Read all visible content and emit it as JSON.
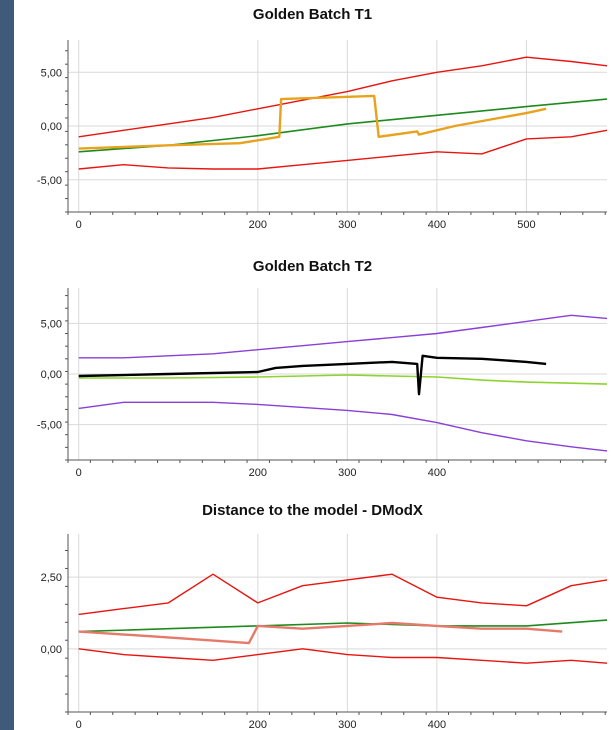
{
  "colors": {
    "upper_limit": "#e8140f",
    "lower_limit": "#e8140f",
    "mean_t1": "#1e8a1e",
    "batch_t1": "#e8a21e",
    "limit_t2": "#8a3fd6",
    "mean_t2": "#8ed32f",
    "batch_t2": "#000000",
    "dmodx_limit": "#e8140f",
    "dmodx_mean": "#1e8a1e",
    "dmodx_batch": "#e57a6a",
    "gridline": "#d9d9d9",
    "axis": "#555555"
  },
  "chart_data": [
    {
      "type": "line",
      "title": "Golden Batch T1",
      "xlabel": "",
      "ylabel": "",
      "xlim": [
        -12,
        590
      ],
      "ylim": [
        -8,
        8
      ],
      "grid": true,
      "x_ticks": [
        "0",
        "200",
        "300",
        "400",
        "500"
      ],
      "x_tick_values": [
        0,
        200,
        300,
        400,
        500
      ],
      "y_ticks": [
        "5,00",
        "0,00",
        "-5,00"
      ],
      "y_tick_values": [
        5,
        0,
        -5
      ],
      "series": [
        {
          "role": "upper_limit",
          "x": [
            0,
            50,
            100,
            150,
            200,
            250,
            300,
            350,
            400,
            450,
            500,
            550,
            590
          ],
          "y": [
            -1.0,
            -0.4,
            0.2,
            0.8,
            1.6,
            2.4,
            3.2,
            4.2,
            5.0,
            5.6,
            6.4,
            6.0,
            5.6
          ]
        },
        {
          "role": "mean",
          "x": [
            0,
            100,
            200,
            300,
            400,
            500,
            590
          ],
          "y": [
            -2.4,
            -1.8,
            -0.9,
            0.2,
            1.0,
            1.8,
            2.5
          ]
        },
        {
          "role": "lower_limit",
          "x": [
            0,
            50,
            100,
            150,
            200,
            250,
            300,
            350,
            400,
            450,
            500,
            550,
            590
          ],
          "y": [
            -4.0,
            -3.6,
            -3.9,
            -4.0,
            -4.0,
            -3.6,
            -3.2,
            -2.8,
            -2.4,
            -2.6,
            -1.2,
            -1.0,
            -0.4
          ]
        },
        {
          "role": "batch",
          "x": [
            0,
            100,
            180,
            224,
            226,
            330,
            335,
            378,
            380,
            420,
            460,
            500,
            522
          ],
          "y": [
            -2.1,
            -1.8,
            -1.6,
            -1.0,
            2.5,
            2.8,
            -1.0,
            -0.5,
            -0.8,
            0.0,
            0.6,
            1.2,
            1.6
          ]
        }
      ]
    },
    {
      "type": "line",
      "title": "Golden Batch T2",
      "xlabel": "",
      "ylabel": "",
      "xlim": [
        -12,
        590
      ],
      "ylim": [
        -8.5,
        8.5
      ],
      "grid": true,
      "x_ticks": [
        "0",
        "200",
        "300",
        "400"
      ],
      "x_tick_values": [
        0,
        200,
        300,
        400
      ],
      "y_ticks": [
        "5,00",
        "0,00",
        "-5,00"
      ],
      "y_tick_values": [
        5,
        0,
        -5
      ],
      "series": [
        {
          "role": "upper_limit",
          "x": [
            0,
            50,
            100,
            150,
            200,
            250,
            300,
            350,
            400,
            450,
            500,
            550,
            590
          ],
          "y": [
            1.6,
            1.6,
            1.8,
            2.0,
            2.4,
            2.8,
            3.2,
            3.6,
            4.0,
            4.6,
            5.2,
            5.8,
            5.5
          ]
        },
        {
          "role": "mean",
          "x": [
            0,
            100,
            200,
            250,
            300,
            350,
            400,
            450,
            500,
            590
          ],
          "y": [
            -0.4,
            -0.4,
            -0.3,
            -0.2,
            -0.1,
            -0.2,
            -0.3,
            -0.6,
            -0.8,
            -1.0
          ]
        },
        {
          "role": "lower_limit",
          "x": [
            0,
            50,
            100,
            150,
            200,
            250,
            300,
            350,
            400,
            450,
            500,
            550,
            590
          ],
          "y": [
            -3.4,
            -2.8,
            -2.8,
            -2.8,
            -3.0,
            -3.3,
            -3.6,
            -4.0,
            -4.8,
            -5.8,
            -6.6,
            -7.2,
            -7.6
          ]
        },
        {
          "role": "batch",
          "x": [
            0,
            100,
            200,
            220,
            250,
            300,
            350,
            378,
            380,
            384,
            400,
            450,
            500,
            522
          ],
          "y": [
            -0.2,
            0.0,
            0.2,
            0.6,
            0.8,
            1.0,
            1.2,
            1.0,
            -2.0,
            1.8,
            1.6,
            1.5,
            1.2,
            1.0
          ]
        }
      ]
    },
    {
      "type": "line",
      "title": "Distance to the model - DModX",
      "xlabel": "",
      "ylabel": "",
      "xlim": [
        -12,
        590
      ],
      "ylim": [
        -2.2,
        4.0
      ],
      "grid": true,
      "x_ticks": [
        "0",
        "200",
        "300",
        "400"
      ],
      "x_tick_values": [
        0,
        200,
        300,
        400
      ],
      "y_ticks": [
        "2,50",
        "0,00"
      ],
      "y_tick_values": [
        2.5,
        0
      ],
      "series": [
        {
          "role": "upper_limit",
          "x": [
            0,
            50,
            100,
            150,
            200,
            250,
            300,
            350,
            400,
            450,
            500,
            550,
            590
          ],
          "y": [
            1.2,
            1.4,
            1.6,
            2.6,
            1.6,
            2.2,
            2.4,
            2.6,
            1.8,
            1.6,
            1.5,
            2.2,
            2.4
          ]
        },
        {
          "role": "mean",
          "x": [
            0,
            100,
            200,
            300,
            400,
            500,
            590
          ],
          "y": [
            0.6,
            0.7,
            0.8,
            0.9,
            0.8,
            0.8,
            1.0
          ]
        },
        {
          "role": "lower_limit",
          "x": [
            0,
            50,
            100,
            150,
            200,
            250,
            300,
            350,
            400,
            450,
            500,
            550,
            590
          ],
          "y": [
            0.0,
            -0.2,
            -0.3,
            -0.4,
            -0.2,
            0.0,
            -0.2,
            -0.3,
            -0.3,
            -0.4,
            -0.5,
            -0.4,
            -0.5
          ]
        },
        {
          "role": "batch",
          "x": [
            0,
            100,
            190,
            200,
            250,
            300,
            350,
            400,
            450,
            500,
            540
          ],
          "y": [
            0.6,
            0.4,
            0.2,
            0.8,
            0.7,
            0.8,
            0.9,
            0.8,
            0.7,
            0.7,
            0.6
          ]
        }
      ]
    }
  ]
}
